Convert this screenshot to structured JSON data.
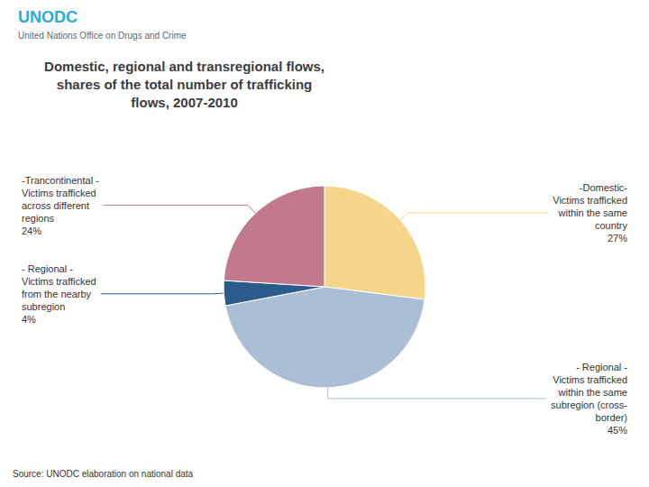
{
  "chart_data": {
    "type": "pie",
    "title": "Domestic, regional and transregional flows,\nshares of the total number of trafficking\nflows, 2007-2010",
    "categories": [
      "-Domestic-\nVictims trafficked\nwithin the same\ncountry",
      "- Regional -\nVictims trafficked\nwithin the same\nsubregion (cross-\nborder)",
      "- Regional -\nVictims trafficked\nfrom the nearby\nsubregion",
      "-Trancontinental -\nVictims trafficked\nacross different\nregions"
    ],
    "values": [
      27,
      45,
      4,
      24
    ],
    "value_labels": [
      "27%",
      "45%",
      "4%",
      "24%"
    ],
    "data_labels": true,
    "colors": [
      "#F5D58A",
      "#AABFD6",
      "#2B5B8A",
      "#C07A8C"
    ],
    "annotations": [
      "UNODC",
      "United Nations Office on Drugs and Crime",
      "Source: UNODC elaboration on national data"
    ]
  }
}
